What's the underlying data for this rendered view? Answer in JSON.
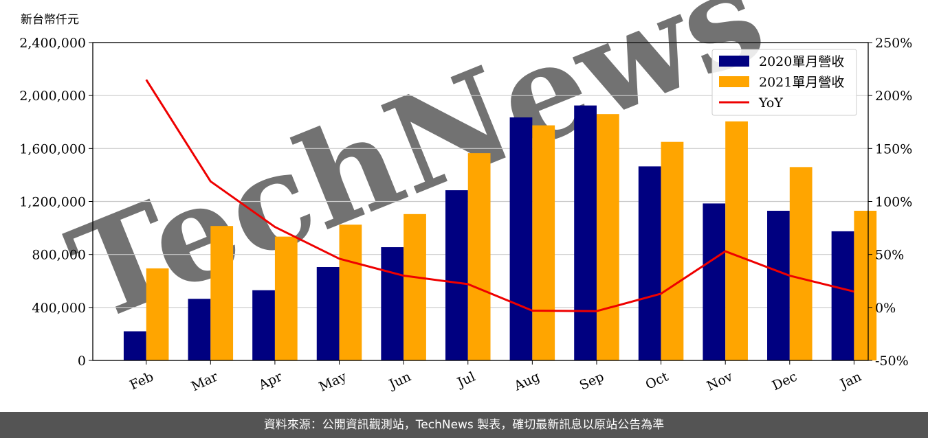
{
  "unit_label": "新台幣仟元",
  "footer_text": "資料來源：公開資訊觀測站，TechNews 製表，確切最新訊息以原站公告為準",
  "watermark": "TechNews",
  "colors": {
    "bar_2020": "#000080",
    "bar_2021": "#FFA500",
    "yoy_line": "#EE0000",
    "grid": "#CCCCCC",
    "watermark": "#E0D8D8",
    "watermark_accent": "#F5C8C8"
  },
  "chart_data": {
    "type": "bar",
    "categories": [
      "Feb",
      "Mar",
      "Apr",
      "May",
      "Jun",
      "Jul",
      "Aug",
      "Sep",
      "Oct",
      "Nov",
      "Dec",
      "Jan"
    ],
    "series": [
      {
        "name": "2020單月營收",
        "values": [
          220000,
          465000,
          530000,
          705000,
          855000,
          1285000,
          1835000,
          1925000,
          1465000,
          1185000,
          1130000,
          975000
        ]
      },
      {
        "name": "2021單月營收",
        "values": [
          695000,
          1015000,
          935000,
          1025000,
          1105000,
          1565000,
          1775000,
          1860000,
          1650000,
          1805000,
          1460000,
          1130000
        ]
      }
    ],
    "line_series": {
      "name": "YoY",
      "values": [
        215,
        119,
        76,
        46,
        30,
        22,
        -3,
        -3.5,
        13,
        53,
        30,
        15
      ]
    },
    "ylabel_left": "新台幣仟元",
    "ylim_left": [
      0,
      2400000
    ],
    "yticks_left": [
      "0",
      "400,000",
      "800,000",
      "1,200,000",
      "1,600,000",
      "2,000,000",
      "2,400,000"
    ],
    "ylim_right": [
      -50,
      250
    ],
    "yticks_right": [
      "-50%",
      "0%",
      "50%",
      "100%",
      "150%",
      "200%",
      "250%"
    ],
    "legend_position": "top-right",
    "grid": "horizontal"
  }
}
